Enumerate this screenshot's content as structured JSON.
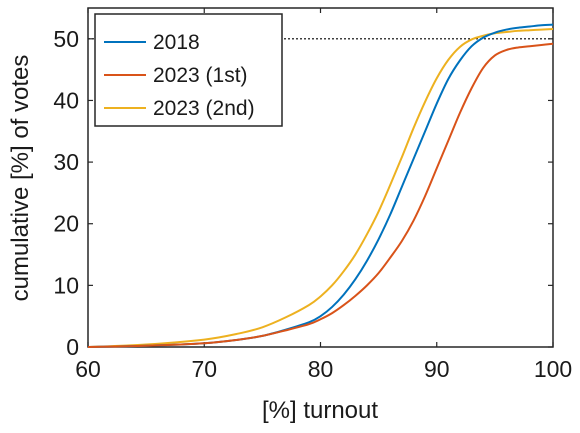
{
  "chart_data": {
    "type": "line",
    "xlabel": "[%] turnout",
    "ylabel": "cumulative [%] of votes",
    "xlim": [
      60,
      100
    ],
    "ylim": [
      0,
      55
    ],
    "xticks": [
      60,
      70,
      80,
      90,
      100
    ],
    "yticks": [
      0,
      10,
      20,
      30,
      40,
      50
    ],
    "grid": false,
    "legend_position": "top-left",
    "reference_line": {
      "y": 50,
      "style": "dotted",
      "color": "#000000"
    },
    "series": [
      {
        "name": "2018",
        "color": "#0072BD",
        "x": [
          60,
          65,
          70,
          73,
          75,
          77,
          79,
          80,
          81,
          82,
          83,
          84,
          85,
          86,
          87,
          88,
          89,
          90,
          91,
          92,
          93,
          94,
          95,
          96,
          97,
          98,
          99,
          100
        ],
        "y": [
          0,
          0.2,
          0.6,
          1.2,
          1.8,
          2.8,
          4.0,
          5.0,
          6.5,
          8.5,
          11.0,
          14.0,
          17.5,
          21.5,
          26.0,
          30.5,
          35.0,
          39.5,
          43.5,
          46.5,
          48.8,
          50.2,
          51.0,
          51.5,
          51.8,
          52.0,
          52.2,
          52.3
        ]
      },
      {
        "name": "2023 (1st)",
        "color": "#D95319",
        "x": [
          60,
          65,
          70,
          73,
          75,
          77,
          79,
          80,
          81,
          82,
          83,
          84,
          85,
          86,
          87,
          88,
          89,
          90,
          91,
          92,
          93,
          94,
          95,
          96,
          97,
          98,
          99,
          100
        ],
        "y": [
          0,
          0.2,
          0.6,
          1.2,
          1.8,
          2.7,
          3.7,
          4.5,
          5.5,
          6.8,
          8.3,
          10.0,
          12.0,
          14.5,
          17.2,
          20.5,
          24.5,
          29.0,
          33.5,
          38.0,
          42.0,
          45.3,
          47.3,
          48.2,
          48.6,
          48.8,
          49.0,
          49.2
        ]
      },
      {
        "name": "2023 (2nd)",
        "color": "#EDB120",
        "x": [
          60,
          65,
          70,
          73,
          75,
          77,
          79,
          80,
          81,
          82,
          83,
          84,
          85,
          86,
          87,
          88,
          89,
          90,
          91,
          92,
          93,
          94,
          95,
          96,
          97,
          98,
          99,
          100
        ],
        "y": [
          0,
          0.4,
          1.2,
          2.2,
          3.2,
          4.8,
          6.8,
          8.2,
          10.0,
          12.3,
          15.0,
          18.3,
          22.0,
          26.3,
          30.8,
          35.5,
          39.8,
          43.6,
          46.6,
          48.7,
          49.9,
          50.5,
          50.9,
          51.1,
          51.3,
          51.4,
          51.5,
          51.6
        ]
      }
    ]
  }
}
